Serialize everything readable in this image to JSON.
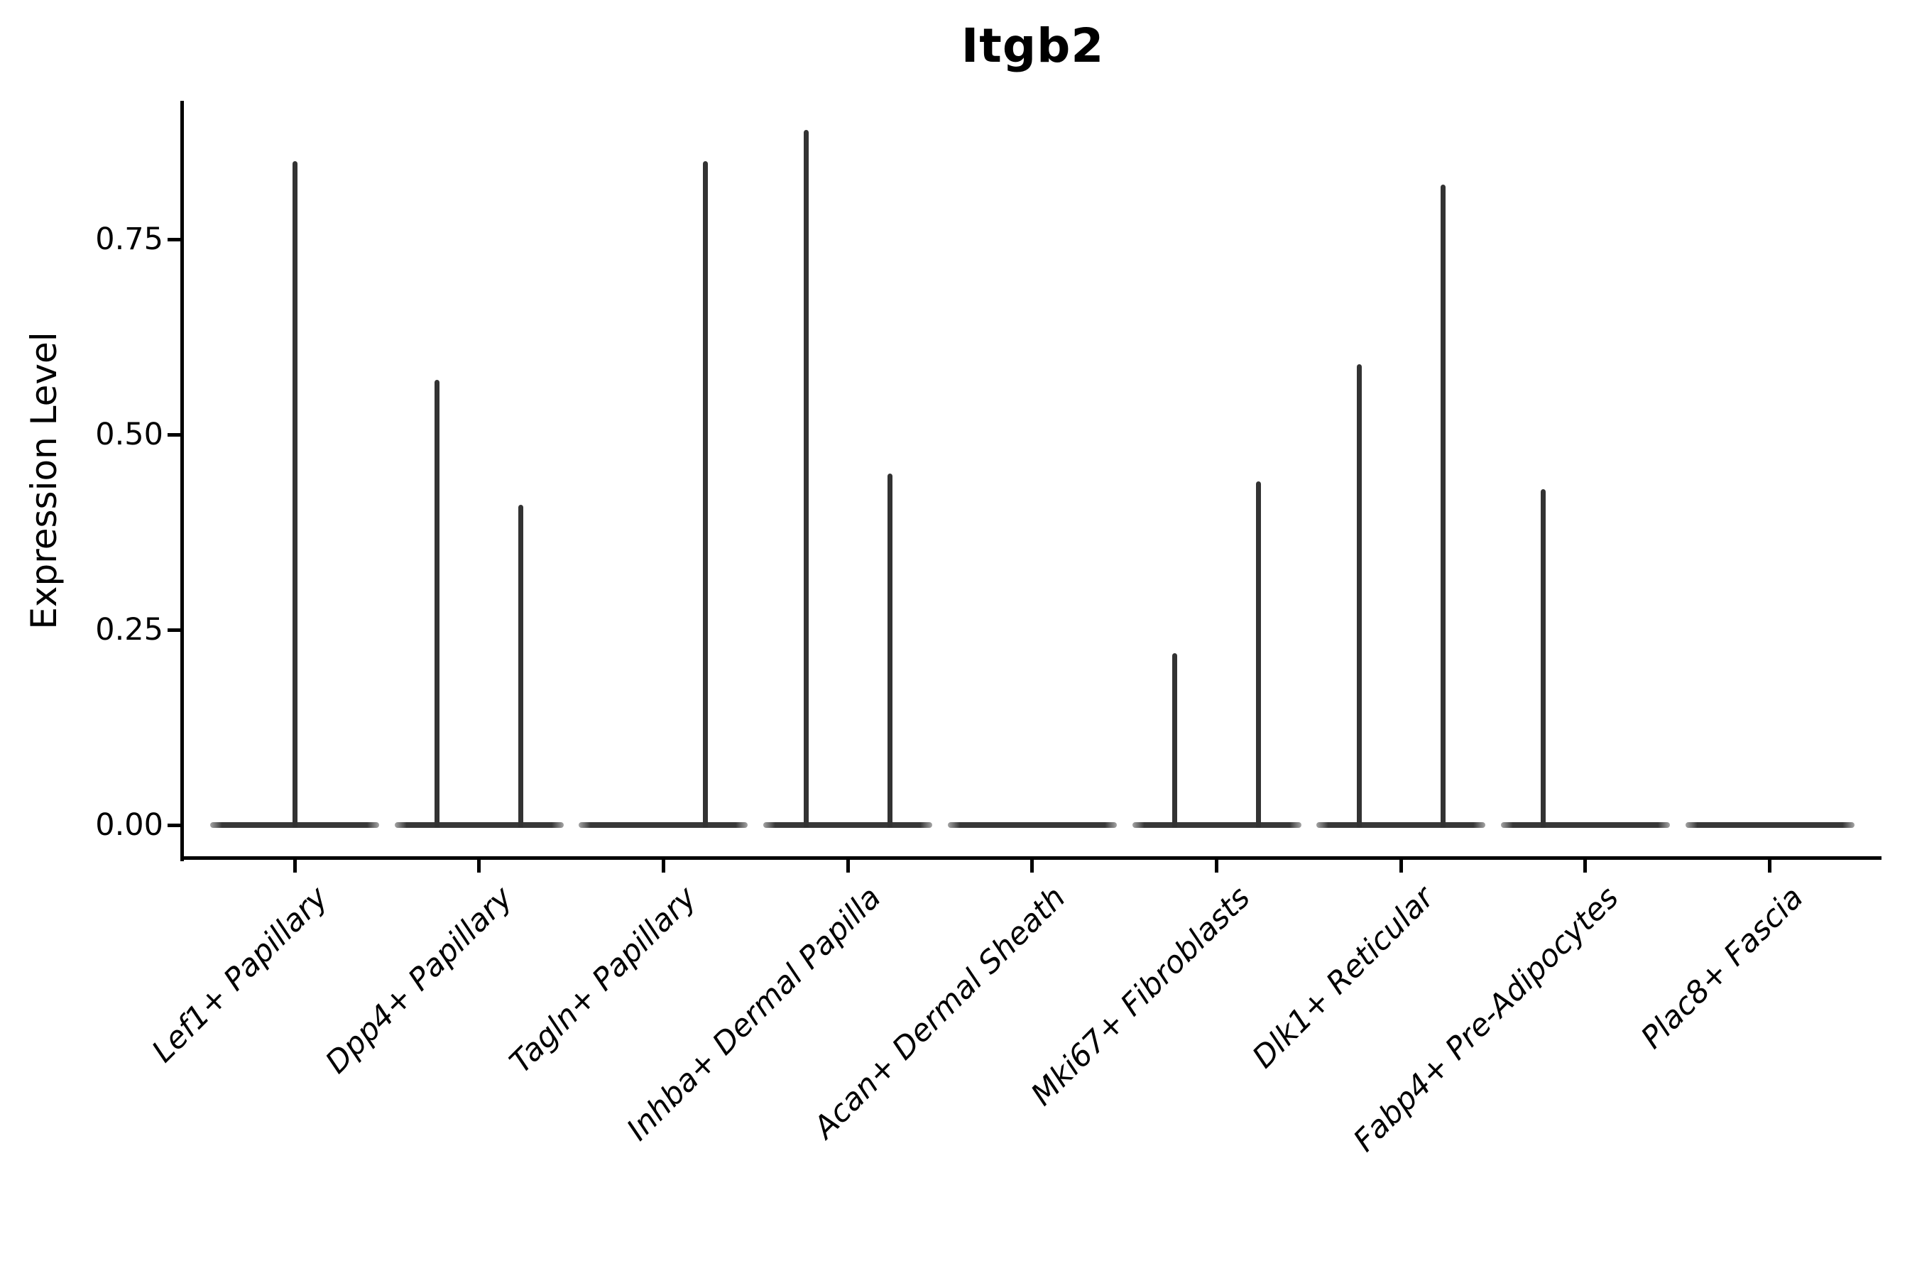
{
  "chart_data": {
    "type": "violin",
    "title": "Itgb2",
    "xlabel": "",
    "ylabel": "Expression Level",
    "ylim": [
      -0.042,
      0.927
    ],
    "yticks": [
      0,
      0.25,
      0.5,
      0.75
    ],
    "ytick_labels": [
      "0.00",
      "0.25",
      "0.50",
      "0.75"
    ],
    "grid": false,
    "legend": "none",
    "categories": [
      "Lef1+ Papillary",
      "Dpp4+ Papillary",
      "Tagln+ Papillary",
      "Inhba+ Dermal Papilla",
      "Acan+ Dermal Sheath",
      "Mki67+ Fibroblasts",
      "Dlk1+ Reticular",
      "Fabp4+ Pre-Adipocytes",
      "Plac8+ Fascia"
    ],
    "violins": [
      {
        "category": "Lef1+ Papillary",
        "body_at_zero": true,
        "spikes": [
          {
            "position": "center",
            "max": 0.85
          }
        ]
      },
      {
        "category": "Dpp4+ Papillary",
        "body_at_zero": true,
        "spikes": [
          {
            "position": "left",
            "max": 0.57
          },
          {
            "position": "right",
            "max": 0.41
          }
        ]
      },
      {
        "category": "Tagln+ Papillary",
        "body_at_zero": true,
        "spikes": [
          {
            "position": "right",
            "max": 0.85
          }
        ]
      },
      {
        "category": "Inhba+ Dermal Papilla",
        "body_at_zero": true,
        "spikes": [
          {
            "position": "left",
            "max": 0.89
          },
          {
            "position": "right",
            "max": 0.45
          }
        ]
      },
      {
        "category": "Acan+ Dermal Sheath",
        "body_at_zero": true,
        "spikes": []
      },
      {
        "category": "Mki67+ Fibroblasts",
        "body_at_zero": true,
        "spikes": [
          {
            "position": "left",
            "max": 0.22
          },
          {
            "position": "right",
            "max": 0.44
          }
        ]
      },
      {
        "category": "Dlk1+ Reticular",
        "body_at_zero": true,
        "spikes": [
          {
            "position": "left",
            "max": 0.59
          },
          {
            "position": "right",
            "max": 0.82
          }
        ]
      },
      {
        "category": "Fabp4+ Pre-Adipocytes",
        "body_at_zero": true,
        "spikes": [
          {
            "position": "left",
            "max": 0.43
          }
        ]
      },
      {
        "category": "Plac8+ Fascia",
        "body_at_zero": true,
        "spikes": []
      }
    ]
  },
  "colors": {
    "violin": "#333333",
    "axis": "#000000",
    "text": "#000000",
    "background": "#ffffff"
  }
}
